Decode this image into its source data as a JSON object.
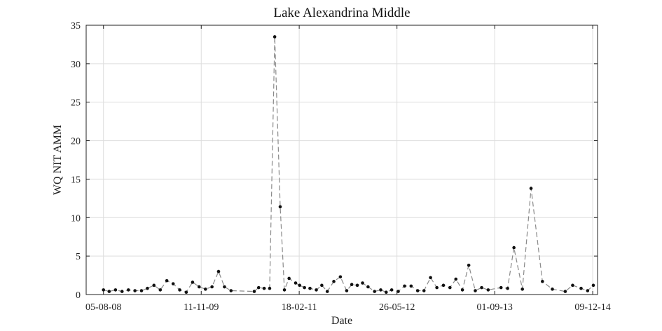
{
  "chart_data": {
    "type": "line",
    "title": "Lake Alexandrina Middle",
    "xlabel": "Date",
    "ylabel": "WQ NIT AMM",
    "ylim": [
      0,
      35
    ],
    "yticks": [
      0,
      5,
      10,
      15,
      20,
      25,
      30,
      35
    ],
    "xlim": [
      "2008-05-15",
      "2015-01-01"
    ],
    "xticks": [
      {
        "date": "2008-08-05",
        "label": "05-08-08"
      },
      {
        "date": "2009-11-11",
        "label": "11-11-09"
      },
      {
        "date": "2011-02-18",
        "label": "18-02-11"
      },
      {
        "date": "2012-05-26",
        "label": "26-05-12"
      },
      {
        "date": "2013-09-01",
        "label": "01-09-13"
      },
      {
        "date": "2014-12-09",
        "label": "09-12-14"
      }
    ],
    "grid": true,
    "colors": {
      "line": "#8a8a8a",
      "marker": "#111111",
      "grid": "#dddddd",
      "axis": "#222222"
    },
    "series": [
      {
        "x": [
          "2008-08-05",
          "2008-09-01",
          "2008-10-01",
          "2008-11-01",
          "2008-12-01",
          "2009-01-01",
          "2009-02-01",
          "2009-03-01",
          "2009-04-01",
          "2009-05-01",
          "2009-06-01",
          "2009-07-01",
          "2009-08-01",
          "2009-09-01",
          "2009-10-01",
          "2009-11-01",
          "2009-12-01",
          "2010-01-01",
          "2010-02-01",
          "2010-03-01",
          "2010-04-01",
          "2010-07-20",
          "2010-08-10",
          "2010-09-05",
          "2010-10-01",
          "2010-10-25",
          "2010-11-20",
          "2010-12-10",
          "2011-01-01",
          "2011-02-01",
          "2011-02-20",
          "2011-03-15",
          "2011-04-10",
          "2011-05-10",
          "2011-06-05",
          "2011-07-01",
          "2011-08-01",
          "2011-09-01",
          "2011-10-01",
          "2011-10-25",
          "2011-11-20",
          "2011-12-15",
          "2012-01-10",
          "2012-02-10",
          "2012-03-10",
          "2012-04-05",
          "2012-05-01",
          "2012-06-01",
          "2012-07-01",
          "2012-08-01",
          "2012-09-01",
          "2012-10-01",
          "2012-11-01",
          "2012-12-01",
          "2013-01-01",
          "2013-02-01",
          "2013-03-01",
          "2013-04-01",
          "2013-05-01",
          "2013-06-01",
          "2013-07-01",
          "2013-08-01",
          "2013-10-01",
          "2013-11-01",
          "2013-12-01",
          "2014-01-10",
          "2014-02-20",
          "2014-04-15",
          "2014-06-01",
          "2014-08-01",
          "2014-09-05",
          "2014-10-15",
          "2014-11-15",
          "2014-12-12"
        ],
        "values": [
          0.6,
          0.4,
          0.6,
          0.4,
          0.6,
          0.5,
          0.5,
          0.8,
          1.2,
          0.6,
          1.8,
          1.4,
          0.6,
          0.3,
          1.6,
          1.0,
          0.7,
          1.0,
          3.0,
          1.0,
          0.5,
          0.4,
          0.9,
          0.8,
          0.8,
          33.5,
          11.4,
          0.6,
          2.1,
          1.5,
          1.2,
          0.9,
          0.8,
          0.6,
          1.2,
          0.4,
          1.7,
          2.3,
          0.5,
          1.3,
          1.2,
          1.5,
          1.0,
          0.4,
          0.6,
          0.3,
          0.6,
          0.4,
          1.1,
          1.1,
          0.5,
          0.5,
          2.2,
          0.9,
          1.2,
          0.9,
          2.0,
          0.6,
          3.8,
          0.5,
          0.9,
          0.6,
          0.9,
          0.8,
          6.1,
          0.7,
          13.8,
          1.7,
          0.7,
          0.4,
          1.2,
          0.8,
          0.5,
          1.2
        ]
      }
    ]
  }
}
